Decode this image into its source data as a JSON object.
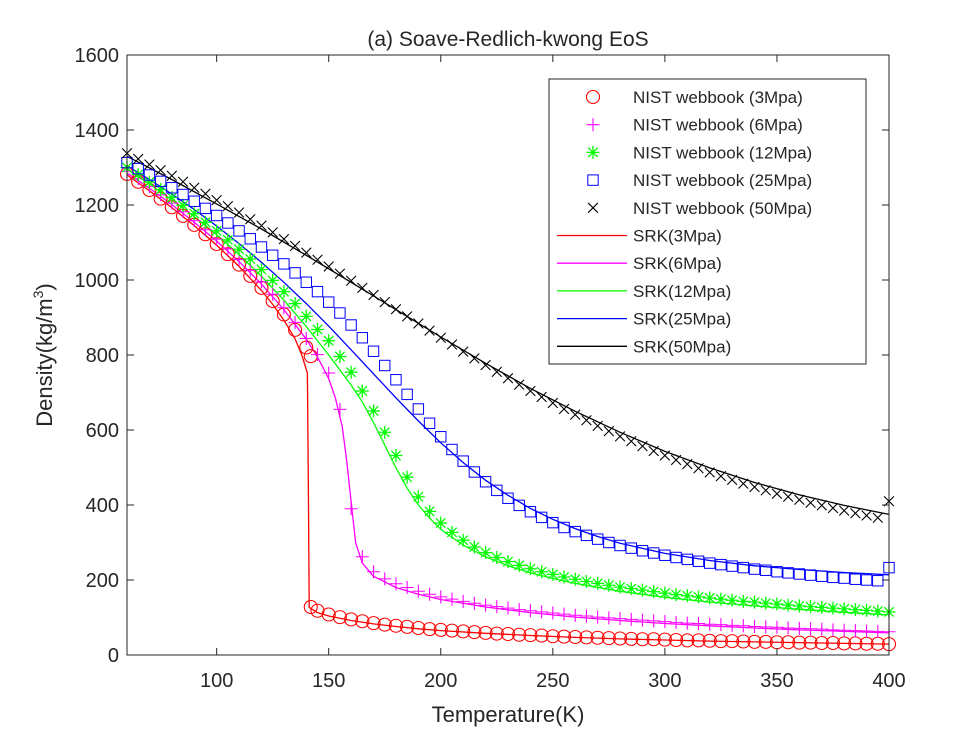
{
  "chart_data": {
    "type": "line",
    "title": "(a) Soave-Redlich-kwong EoS",
    "xlabel": "Temperature(K)",
    "ylabel_main": "Density(kg/m",
    "ylabel_sup": "3",
    "ylabel_close": ")",
    "xlim": [
      60,
      400
    ],
    "ylim": [
      0,
      1600
    ],
    "xticks": [
      100,
      150,
      200,
      250,
      300,
      350,
      400
    ],
    "yticks": [
      0,
      200,
      400,
      600,
      800,
      1000,
      1200,
      1400,
      1600
    ],
    "grid": false,
    "legend_position": "top-right",
    "marker_series": [
      {
        "name": "NIST webbook (3Mpa)",
        "color": "#ff0000",
        "marker": "circle",
        "x": [
          60,
          65,
          70,
          75,
          80,
          85,
          90,
          95,
          100,
          105,
          110,
          115,
          120,
          125,
          130,
          135,
          140,
          142,
          142,
          145,
          150,
          155,
          160,
          165,
          170,
          175,
          180,
          185,
          190,
          195,
          200,
          205,
          210,
          215,
          220,
          225,
          230,
          235,
          240,
          245,
          250,
          255,
          260,
          265,
          270,
          275,
          280,
          285,
          290,
          295,
          300,
          305,
          310,
          315,
          320,
          325,
          330,
          335,
          340,
          345,
          350,
          355,
          360,
          365,
          370,
          375,
          380,
          385,
          390,
          395,
          400
        ],
        "y": [
          1283,
          1262,
          1240,
          1217,
          1194,
          1171,
          1147,
          1122,
          1096,
          1069,
          1041,
          1011,
          979,
          944,
          908,
          867,
          820,
          797,
          128,
          118,
          108,
          101,
          95,
          90,
          85,
          81,
          78,
          75,
          72,
          69,
          67,
          65,
          63,
          61,
          59,
          57,
          56,
          54,
          53,
          52,
          50,
          49,
          48,
          47,
          46,
          45,
          44,
          43,
          42,
          42,
          41,
          40,
          39,
          39,
          38,
          37,
          37,
          36,
          35,
          35,
          34,
          34,
          33,
          33,
          32,
          32,
          31,
          31,
          30,
          30,
          29
        ]
      },
      {
        "name": "NIST webbook (6Mpa)",
        "color": "#ff00ff",
        "marker": "plus",
        "x": [
          60,
          65,
          70,
          75,
          80,
          85,
          90,
          95,
          100,
          105,
          110,
          115,
          120,
          125,
          130,
          135,
          140,
          145,
          150,
          155,
          160,
          165,
          170,
          175,
          180,
          185,
          190,
          195,
          200,
          205,
          210,
          215,
          220,
          225,
          230,
          235,
          240,
          245,
          250,
          255,
          260,
          265,
          270,
          275,
          280,
          285,
          290,
          295,
          300,
          305,
          310,
          315,
          320,
          325,
          330,
          335,
          340,
          345,
          350,
          355,
          360,
          365,
          370,
          375,
          380,
          385,
          390,
          395,
          400
        ],
        "y": [
          1290,
          1270,
          1249,
          1227,
          1205,
          1182,
          1158,
          1134,
          1109,
          1083,
          1055,
          1026,
          995,
          962,
          926,
          887,
          844,
          801,
          752,
          655,
          390,
          262,
          222,
          203,
          190,
          180,
          170,
          162,
          155,
          149,
          143,
          138,
          133,
          129,
          125,
          121,
          118,
          115,
          112,
          109,
          106,
          104,
          101,
          99,
          97,
          95,
          93,
          91,
          89,
          87,
          85,
          84,
          82,
          81,
          79,
          78,
          76,
          75,
          74,
          72,
          71,
          70,
          69,
          67,
          66,
          65,
          64,
          63,
          62
        ]
      },
      {
        "name": "NIST webbook (12Mpa)",
        "color": "#00ff00",
        "marker": "asterisk",
        "x": [
          60,
          65,
          70,
          75,
          80,
          85,
          90,
          95,
          100,
          105,
          110,
          115,
          120,
          125,
          130,
          135,
          140,
          145,
          150,
          155,
          160,
          165,
          170,
          175,
          180,
          185,
          190,
          195,
          200,
          205,
          210,
          215,
          220,
          225,
          230,
          235,
          240,
          245,
          250,
          255,
          260,
          265,
          270,
          275,
          280,
          285,
          290,
          295,
          300,
          305,
          310,
          315,
          320,
          325,
          330,
          335,
          340,
          345,
          350,
          355,
          360,
          365,
          370,
          375,
          380,
          385,
          390,
          395,
          400
        ],
        "y": [
          1300,
          1281,
          1261,
          1241,
          1220,
          1199,
          1177,
          1154,
          1131,
          1107,
          1082,
          1056,
          1028,
          999,
          969,
          937,
          903,
          868,
          838,
          796,
          754,
          704,
          651,
          594,
          532,
          474,
          422,
          383,
          352,
          327,
          306,
          288,
          273,
          260,
          249,
          239,
          230,
          222,
          215,
          208,
          202,
          196,
          191,
          186,
          181,
          177,
          173,
          169,
          165,
          161,
          158,
          155,
          152,
          149,
          146,
          143,
          141,
          138,
          136,
          133,
          131,
          129,
          127,
          125,
          123,
          121,
          119,
          117,
          115
        ]
      },
      {
        "name": "NIST webbook (25Mpa)",
        "color": "#0000ff",
        "marker": "square",
        "x": [
          60,
          65,
          70,
          75,
          80,
          85,
          90,
          95,
          100,
          105,
          110,
          115,
          120,
          125,
          130,
          135,
          140,
          145,
          150,
          155,
          160,
          165,
          170,
          175,
          180,
          185,
          190,
          195,
          200,
          205,
          210,
          215,
          220,
          225,
          230,
          235,
          240,
          245,
          250,
          255,
          260,
          265,
          270,
          275,
          280,
          285,
          290,
          295,
          300,
          305,
          310,
          315,
          320,
          325,
          330,
          335,
          340,
          345,
          350,
          355,
          360,
          365,
          370,
          375,
          380,
          385,
          390,
          395,
          400
        ],
        "y": [
          1313,
          1297,
          1280,
          1263,
          1246,
          1228,
          1210,
          1191,
          1172,
          1152,
          1131,
          1110,
          1088,
          1066,
          1043,
          1019,
          994,
          969,
          941,
          912,
          880,
          846,
          810,
          772,
          734,
          695,
          656,
          618,
          582,
          548,
          517,
          488,
          462,
          439,
          418,
          399,
          382,
          367,
          353,
          340,
          329,
          319,
          309,
          300,
          292,
          285,
          278,
          272,
          266,
          260,
          255,
          250,
          245,
          241,
          237,
          233,
          229,
          226,
          222,
          219,
          216,
          213,
          210,
          207,
          205,
          202,
          200,
          198,
          233
        ]
      },
      {
        "name": "NIST webbook (50Mpa)",
        "color": "#000000",
        "marker": "x",
        "x": [
          60,
          65,
          70,
          75,
          80,
          85,
          90,
          95,
          100,
          105,
          110,
          115,
          120,
          125,
          130,
          135,
          140,
          145,
          150,
          155,
          160,
          165,
          170,
          175,
          180,
          185,
          190,
          195,
          200,
          205,
          210,
          215,
          220,
          225,
          230,
          235,
          240,
          245,
          250,
          255,
          260,
          265,
          270,
          275,
          280,
          285,
          290,
          295,
          300,
          305,
          310,
          315,
          320,
          325,
          330,
          335,
          340,
          345,
          350,
          355,
          360,
          365,
          370,
          375,
          380,
          385,
          390,
          395,
          400
        ],
        "y": [
          1338,
          1323,
          1308,
          1293,
          1278,
          1262,
          1246,
          1230,
          1213,
          1197,
          1180,
          1162,
          1145,
          1127,
          1109,
          1091,
          1073,
          1054,
          1036,
          1017,
          998,
          979,
          960,
          941,
          922,
          903,
          884,
          865,
          846,
          828,
          809,
          791,
          773,
          755,
          738,
          721,
          704,
          688,
          672,
          656,
          641,
          626,
          611,
          597,
          583,
          570,
          557,
          544,
          532,
          520,
          509,
          498,
          487,
          477,
          467,
          457,
          448,
          439,
          430,
          422,
          414,
          406,
          399,
          392,
          385,
          378,
          372,
          366,
          410
        ]
      }
    ],
    "line_series": [
      {
        "name": "SRK(3Mpa)",
        "color": "#ff0000",
        "x": [
          60,
          70,
          80,
          90,
          100,
          110,
          120,
          125,
          130,
          135,
          138,
          140.5,
          141,
          141.3,
          145,
          150,
          160,
          170,
          180,
          190,
          200,
          220,
          240,
          260,
          280,
          300,
          320,
          340,
          360,
          380,
          400
        ],
        "y": [
          1280,
          1238,
          1193,
          1145,
          1093,
          1036,
          972,
          935,
          893,
          843,
          800,
          752,
          402,
          127,
          113,
          104,
          92,
          83,
          76,
          70,
          65,
          58,
          52,
          47,
          43,
          40,
          37,
          35,
          33,
          31,
          29
        ]
      },
      {
        "name": "SRK(6Mpa)",
        "color": "#ff00ff",
        "x": [
          60,
          70,
          80,
          90,
          100,
          110,
          120,
          130,
          140,
          145,
          150,
          153,
          156,
          158,
          160,
          162,
          165,
          170,
          180,
          190,
          200,
          220,
          240,
          260,
          280,
          300,
          320,
          340,
          360,
          380,
          400
        ],
        "y": [
          1285,
          1245,
          1201,
          1154,
          1104,
          1049,
          989,
          921,
          842,
          795,
          737,
          685,
          610,
          520,
          410,
          300,
          245,
          210,
          180,
          162,
          148,
          128,
          113,
          101,
          92,
          84,
          78,
          72,
          67,
          63,
          59
        ]
      },
      {
        "name": "SRK(12Mpa)",
        "color": "#00ff00",
        "x": [
          60,
          70,
          80,
          90,
          100,
          110,
          120,
          130,
          140,
          150,
          160,
          165,
          170,
          175,
          180,
          185,
          190,
          195,
          200,
          210,
          220,
          230,
          240,
          250,
          260,
          280,
          300,
          320,
          340,
          360,
          380,
          400
        ],
        "y": [
          1295,
          1256,
          1214,
          1169,
          1121,
          1068,
          1010,
          946,
          876,
          800,
          720,
          675,
          620,
          560,
          500,
          445,
          400,
          365,
          335,
          293,
          262,
          238,
          219,
          204,
          191,
          170,
          154,
          141,
          131,
          122,
          114,
          107
        ]
      },
      {
        "name": "SRK(25Mpa)",
        "color": "#0000ff",
        "x": [
          60,
          70,
          80,
          90,
          100,
          110,
          120,
          130,
          140,
          150,
          160,
          170,
          180,
          190,
          200,
          210,
          220,
          230,
          240,
          250,
          260,
          270,
          280,
          300,
          320,
          340,
          360,
          380,
          400
        ],
        "y": [
          1305,
          1268,
          1229,
          1188,
          1144,
          1097,
          1047,
          994,
          937,
          877,
          814,
          750,
          686,
          624,
          566,
          513,
          466,
          426,
          391,
          362,
          337,
          316,
          298,
          271,
          252,
          238,
          228,
          220,
          214
        ]
      },
      {
        "name": "SRK(50Mpa)",
        "color": "#000000",
        "x": [
          60,
          80,
          100,
          120,
          140,
          160,
          180,
          200,
          220,
          240,
          260,
          280,
          300,
          320,
          340,
          360,
          380,
          400
        ],
        "y": [
          1330,
          1268,
          1203,
          1136,
          1066,
          994,
          921,
          848,
          778,
          711,
          650,
          594,
          543,
          499,
          460,
          427,
          399,
          375
        ]
      }
    ]
  }
}
